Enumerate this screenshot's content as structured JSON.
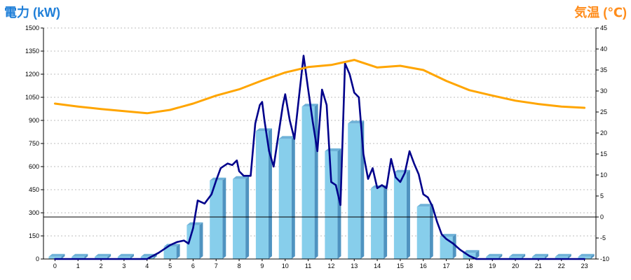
{
  "chart_data": {
    "type": "bar",
    "left_title": "電力 (kW)",
    "right_title": "気温 (℃)",
    "categories": [
      "0",
      "1",
      "2",
      "3",
      "4",
      "5",
      "6",
      "7",
      "8",
      "9",
      "10",
      "11",
      "12",
      "13",
      "14",
      "15",
      "16",
      "17",
      "18",
      "19",
      "20",
      "21",
      "22",
      "23"
    ],
    "y_left": {
      "min": 0,
      "max": 1500,
      "ticks": [
        "0",
        "150",
        "300",
        "450",
        "600",
        "750",
        "900",
        "1050",
        "1200",
        "1350",
        "1500"
      ]
    },
    "y_right": {
      "min": -10,
      "max": 45,
      "ticks": [
        "-10",
        "-5",
        "0",
        "5",
        "10",
        "15",
        "20",
        "25",
        "30",
        "35",
        "40",
        "45"
      ]
    },
    "grid": true,
    "series": [
      {
        "kind": "bar",
        "axis": "left",
        "values": [
          15,
          15,
          15,
          15,
          15,
          80,
          220,
          510,
          520,
          830,
          780,
          990,
          700,
          880,
          460,
          560,
          340,
          145,
          40,
          15,
          15,
          15,
          15,
          15
        ],
        "color": "#87ceeb"
      },
      {
        "kind": "line",
        "axis": "left",
        "color": "#00008b",
        "x": [
          0,
          1,
          2,
          3,
          4,
          4.5,
          5,
          5.3,
          5.6,
          5.8,
          6,
          6.2,
          6.5,
          6.8,
          7,
          7.2,
          7.5,
          7.7,
          7.9,
          8,
          8.2,
          8.5,
          8.7,
          8.9,
          9,
          9.1,
          9.3,
          9.5,
          9.7,
          9.9,
          10,
          10.2,
          10.4,
          10.6,
          10.8,
          11,
          11.2,
          11.4,
          11.6,
          11.8,
          12,
          12.2,
          12.4,
          12.6,
          12.8,
          13,
          13.2,
          13.4,
          13.6,
          13.8,
          14,
          14.2,
          14.4,
          14.6,
          14.8,
          15,
          15.2,
          15.4,
          15.6,
          15.8,
          16,
          16.2,
          16.4,
          16.6,
          16.8,
          17,
          17.3,
          17.6,
          18,
          18.3,
          18.6,
          19,
          20,
          21,
          22,
          23
        ],
        "values": [
          0,
          0,
          0,
          0,
          0,
          40,
          90,
          110,
          120,
          100,
          200,
          380,
          360,
          420,
          510,
          590,
          620,
          610,
          640,
          570,
          540,
          540,
          880,
          1000,
          1020,
          900,
          700,
          600,
          800,
          1000,
          1070,
          900,
          780,
          1050,
          1320,
          1100,
          890,
          700,
          1100,
          1000,
          500,
          480,
          350,
          1270,
          1200,
          1080,
          1050,
          680,
          520,
          590,
          460,
          480,
          460,
          650,
          530,
          500,
          560,
          700,
          620,
          550,
          420,
          400,
          340,
          240,
          160,
          130,
          100,
          60,
          20,
          0,
          0,
          0,
          0,
          0,
          0,
          0
        ]
      },
      {
        "kind": "line",
        "axis": "right",
        "color": "#ffa500",
        "x": [
          0,
          1,
          2,
          3,
          4,
          5,
          6,
          7,
          8,
          9,
          10,
          11,
          12,
          13,
          14,
          15,
          16,
          17,
          18,
          19,
          20,
          21,
          22,
          23
        ],
        "values": [
          27,
          26.3,
          25.7,
          25.2,
          24.7,
          25.5,
          27,
          28.9,
          30.4,
          32.5,
          34.4,
          35.7,
          36.2,
          37.4,
          35.6,
          36,
          35,
          32.4,
          30.2,
          28.9,
          27.7,
          26.9,
          26.3,
          26
        ]
      }
    ]
  }
}
